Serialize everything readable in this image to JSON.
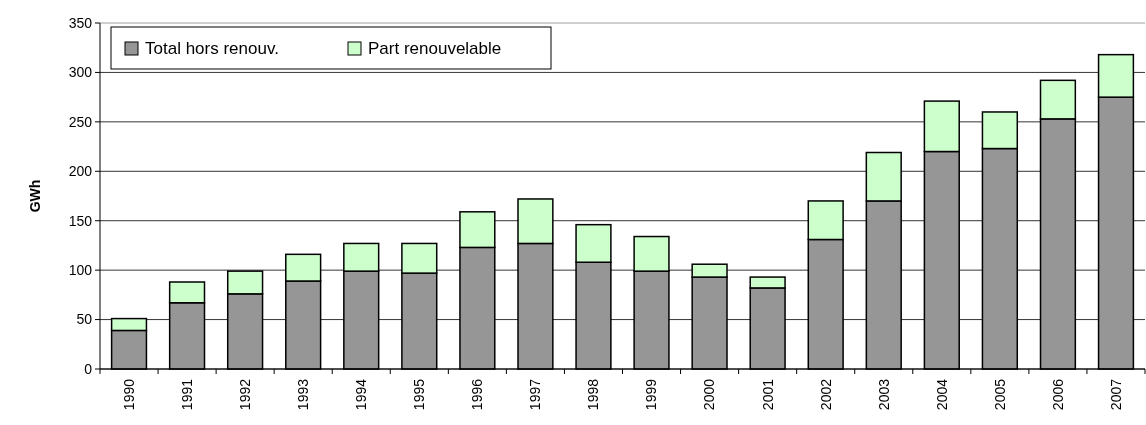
{
  "chart_data": {
    "type": "bar",
    "ylabel": "GWh",
    "stacked": true,
    "categories": [
      "1990",
      "1991",
      "1992",
      "1993",
      "1994",
      "1995",
      "1996",
      "1997",
      "1998",
      "1999",
      "2000",
      "2001",
      "2002",
      "2003",
      "2004",
      "2005",
      "2006",
      "2007"
    ],
    "series": [
      {
        "name": "Total hors renouv.",
        "color": "#969696",
        "values": [
          39,
          67,
          76,
          89,
          99,
          97,
          123,
          127,
          108,
          99,
          93,
          82,
          131,
          170,
          220,
          223,
          253,
          275
        ]
      },
      {
        "name": "Part renouvelable",
        "color": "#ccffcc",
        "values": [
          12,
          21,
          23,
          27,
          28,
          30,
          36,
          45,
          38,
          35,
          13,
          11,
          39,
          49,
          51,
          37,
          39,
          43
        ]
      }
    ],
    "ylim": [
      0,
      350
    ],
    "yticks": [
      0,
      50,
      100,
      150,
      200,
      250,
      300,
      350
    ],
    "grid": "y",
    "legend": "top left"
  }
}
